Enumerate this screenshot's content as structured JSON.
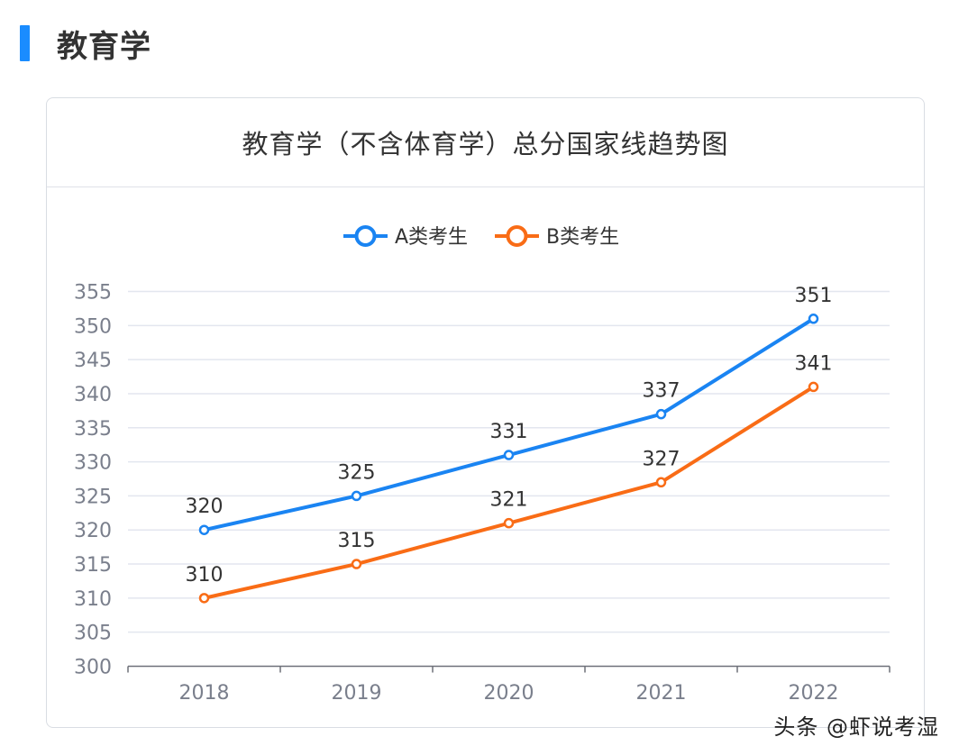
{
  "section": {
    "title": "教育学"
  },
  "card": {
    "title": "教育学（不含体育学）总分国家线趋势图"
  },
  "watermark": "头条 @虾说考湿",
  "colors": {
    "accent": "#1a8cff",
    "series_a": "#1a84f2",
    "series_b": "#f96c16",
    "grid": "#e3e6ef"
  },
  "chart_data": {
    "type": "line",
    "title": "教育学（不含体育学）总分国家线趋势图",
    "xlabel": "",
    "ylabel": "",
    "categories": [
      "2018",
      "2019",
      "2020",
      "2021",
      "2022"
    ],
    "ylim": [
      300,
      355
    ],
    "yticks": [
      300,
      305,
      310,
      315,
      320,
      325,
      330,
      335,
      340,
      345,
      350,
      355
    ],
    "grid": true,
    "legend_position": "top-center",
    "series": [
      {
        "name": "A类考生",
        "values": [
          320,
          325,
          331,
          337,
          351
        ],
        "color": "#1a84f2"
      },
      {
        "name": "B类考生",
        "values": [
          310,
          315,
          321,
          327,
          341
        ],
        "color": "#f96c16"
      }
    ]
  }
}
